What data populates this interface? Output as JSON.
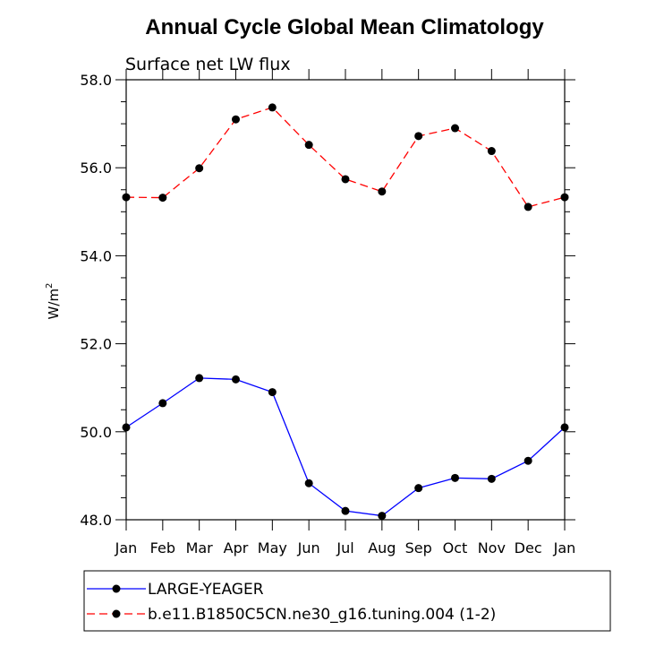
{
  "chart_data": {
    "type": "line",
    "title": "Annual Cycle Global Mean Climatology",
    "subtitle": "Surface net LW flux",
    "ylabel": "W/m",
    "ylabel_superscript": "2",
    "xlabel": "",
    "ylim": [
      48.0,
      58.0
    ],
    "yticks": [
      "48.0",
      "50.0",
      "52.0",
      "54.0",
      "56.0",
      "58.0"
    ],
    "categories": [
      "Jan",
      "Feb",
      "Mar",
      "Apr",
      "May",
      "Jun",
      "Jul",
      "Aug",
      "Sep",
      "Oct",
      "Nov",
      "Dec",
      "Jan"
    ],
    "series": [
      {
        "name": "LARGE-YEAGER",
        "color": "#0000ff",
        "dash": "solid",
        "values": [
          50.1,
          50.65,
          51.22,
          51.19,
          50.9,
          48.83,
          48.2,
          48.09,
          48.72,
          48.95,
          48.93,
          49.34,
          50.1
        ]
      },
      {
        "name": "b.e11.B1850C5CN.ne30_g16.tuning.004 (1-2)",
        "color": "#ff0000",
        "dash": "dashed",
        "values": [
          55.33,
          55.32,
          55.99,
          57.1,
          57.37,
          56.52,
          55.74,
          55.46,
          56.72,
          56.9,
          56.38,
          55.11,
          55.33
        ]
      }
    ]
  }
}
